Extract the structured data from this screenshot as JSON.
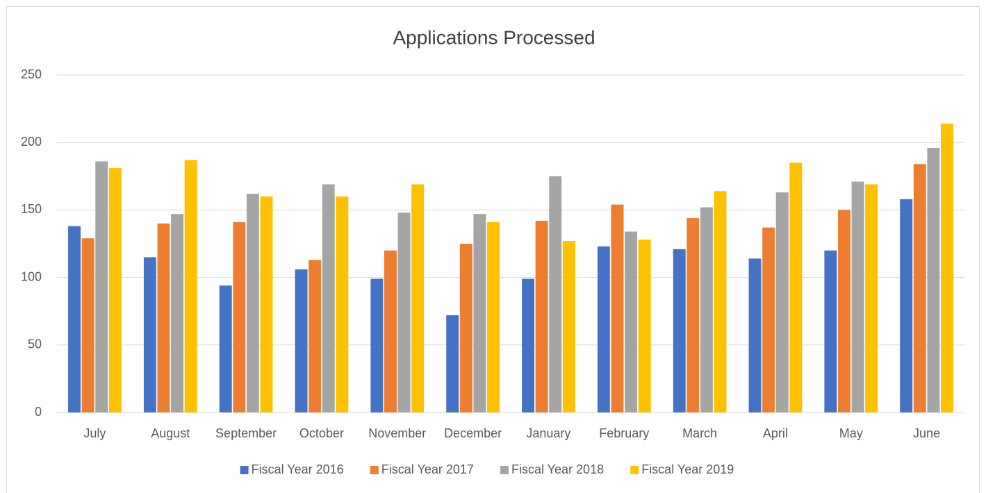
{
  "chart_data": {
    "type": "bar",
    "title": "Applications Processed",
    "categories": [
      "July",
      "August",
      "September",
      "October",
      "November",
      "December",
      "January",
      "February",
      "March",
      "April",
      "May",
      "June"
    ],
    "series": [
      {
        "name": "Fiscal Year 2016",
        "color": "#4472c4",
        "values": [
          138,
          115,
          94,
          106,
          99,
          72,
          99,
          123,
          121,
          114,
          120,
          158
        ]
      },
      {
        "name": "Fiscal Year 2017",
        "color": "#ed7d31",
        "values": [
          129,
          140,
          141,
          113,
          120,
          125,
          142,
          154,
          144,
          137,
          150,
          184
        ]
      },
      {
        "name": "Fiscal Year 2018",
        "color": "#a5a5a5",
        "values": [
          186,
          147,
          162,
          169,
          148,
          147,
          175,
          134,
          152,
          163,
          171,
          196
        ]
      },
      {
        "name": "Fiscal Year 2019",
        "color": "#ffc000",
        "values": [
          181,
          187,
          160,
          160,
          169,
          141,
          127,
          128,
          164,
          185,
          169,
          214
        ]
      }
    ],
    "ylim": [
      0,
      250
    ],
    "yticks": [
      0,
      50,
      100,
      150,
      200,
      250
    ],
    "grid": true,
    "legend": "bottom"
  }
}
